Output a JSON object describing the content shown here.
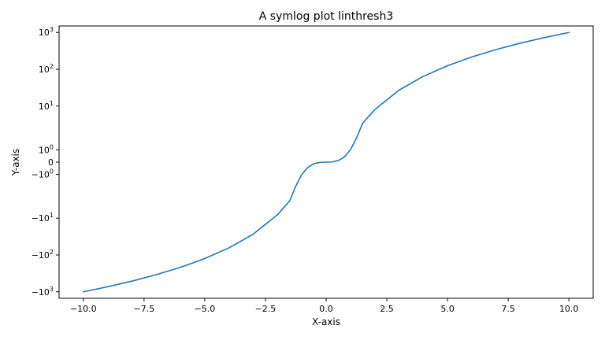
{
  "chart_data": {
    "type": "line",
    "title": "A symlog plot linthresh3",
    "xlabel": "X-axis",
    "ylabel": "Y-axis",
    "xlim": [
      -11,
      11
    ],
    "yscale": "symlog",
    "linthresh": 3,
    "ylim": [
      -1500,
      1500
    ],
    "grid": false,
    "x_ticks": [
      {
        "value": -10,
        "label": "−10.0"
      },
      {
        "value": -7.5,
        "label": "−7.5"
      },
      {
        "value": -5,
        "label": "−5.0"
      },
      {
        "value": -2.5,
        "label": "−2.5"
      },
      {
        "value": 0,
        "label": "0.0"
      },
      {
        "value": 2.5,
        "label": "2.5"
      },
      {
        "value": 5,
        "label": "5.0"
      },
      {
        "value": 7.5,
        "label": "7.5"
      },
      {
        "value": 10,
        "label": "10.0"
      }
    ],
    "y_ticks": [
      {
        "value": -1000,
        "base": "−10",
        "exp": "3"
      },
      {
        "value": -100,
        "base": "−10",
        "exp": "2"
      },
      {
        "value": -10,
        "base": "−10",
        "exp": "1"
      },
      {
        "value": -1,
        "base": "−10",
        "exp": "0"
      },
      {
        "value": 0,
        "base": "0",
        "exp": ""
      },
      {
        "value": 1,
        "base": "10",
        "exp": "0"
      },
      {
        "value": 10,
        "base": "10",
        "exp": "1"
      },
      {
        "value": 100,
        "base": "10",
        "exp": "2"
      },
      {
        "value": 1000,
        "base": "10",
        "exp": "3"
      }
    ],
    "series": [
      {
        "color": "#1f77b4",
        "x": [
          -10,
          -9,
          -8,
          -7,
          -6,
          -5,
          -4,
          -3,
          -2,
          -1.5,
          -1.25,
          -1,
          -0.75,
          -0.5,
          -0.25,
          0,
          0.25,
          0.5,
          0.75,
          1,
          1.25,
          1.5,
          2,
          3,
          4,
          5,
          6,
          7,
          8,
          9,
          10
        ],
        "y": [
          -1000,
          -729,
          -512,
          -343,
          -216,
          -125,
          -64,
          -27,
          -8,
          -3.375,
          -1.953,
          -1,
          -0.422,
          -0.125,
          -0.016,
          0,
          0.016,
          0.125,
          0.422,
          1,
          1.953,
          3.375,
          8,
          27,
          64,
          125,
          216,
          343,
          512,
          729,
          1000
        ]
      }
    ]
  }
}
